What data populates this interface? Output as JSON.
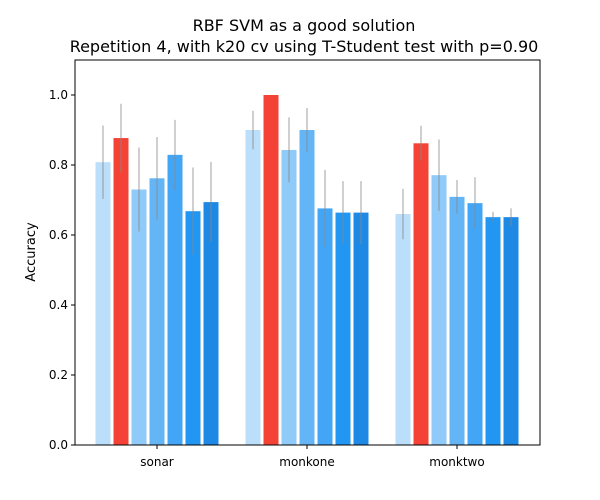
{
  "chart_data": {
    "type": "bar",
    "title": [
      "RBF SVM as a good solution",
      "Repetition 4, with k20 cv using T-Student test with p=0.90"
    ],
    "xlabel": "",
    "ylabel": "Accuracy",
    "ylim": [
      0,
      1.1
    ],
    "yticks": [
      0.0,
      0.2,
      0.4,
      0.6,
      0.8,
      1.0
    ],
    "ytick_labels": [
      "0.0",
      "0.2",
      "0.4",
      "0.6",
      "0.8",
      "1.0"
    ],
    "grid": false,
    "legend": "none",
    "categories": [
      "sonar",
      "monkone",
      "monktwo"
    ],
    "highlight_color": "#f44336",
    "error_bar_color": "#888888",
    "groups": [
      {
        "category": "sonar",
        "values": [
          0.808,
          0.877,
          0.73,
          0.762,
          0.829,
          0.668,
          0.694
        ],
        "errors": [
          0.105,
          0.098,
          0.12,
          0.118,
          0.1,
          0.125,
          0.115
        ],
        "colors": [
          "#bbdefb",
          "#f44336",
          "#90caf9",
          "#64b5f6",
          "#42a5f5",
          "#2196f3",
          "#1e88e5"
        ]
      },
      {
        "category": "monkone",
        "values": [
          0.9,
          1.0,
          0.843,
          0.9,
          0.676,
          0.664,
          0.664
        ],
        "errors": [
          0.055,
          0.0,
          0.093,
          0.063,
          0.11,
          0.09,
          0.09
        ],
        "colors": [
          "#bbdefb",
          "#f44336",
          "#90caf9",
          "#64b5f6",
          "#42a5f5",
          "#2196f3",
          "#1e88e5"
        ]
      },
      {
        "category": "monktwo",
        "values": [
          0.66,
          0.862,
          0.771,
          0.709,
          0.691,
          0.651,
          0.651
        ],
        "errors": [
          0.072,
          0.05,
          0.102,
          0.048,
          0.074,
          0.015,
          0.025
        ],
        "colors": [
          "#bbdefb",
          "#f44336",
          "#90caf9",
          "#64b5f6",
          "#42a5f5",
          "#2196f3",
          "#1e88e5"
        ]
      }
    ]
  }
}
